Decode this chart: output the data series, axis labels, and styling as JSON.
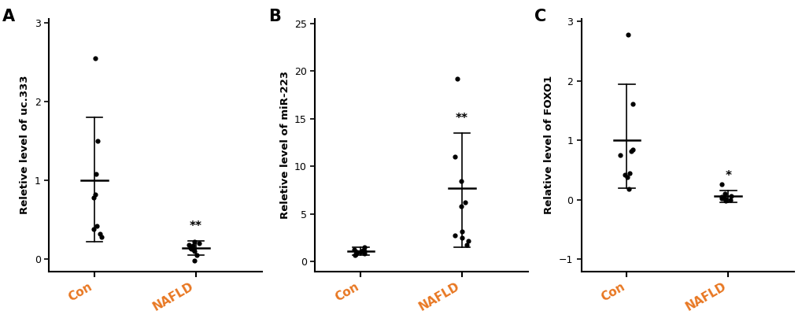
{
  "panels": [
    {
      "label": "A",
      "ylabel": "Reletive level of uc.333",
      "ylim": [
        -0.15,
        3.05
      ],
      "yticks": [
        0,
        1,
        2,
        3
      ],
      "groups": {
        "Con": {
          "points": [
            2.55,
            1.5,
            1.08,
            0.82,
            0.78,
            0.42,
            0.38,
            0.32,
            0.28
          ],
          "mean": 1.0,
          "sem_low": 0.22,
          "sem_high": 1.8
        },
        "NAFLD": {
          "points": [
            0.22,
            0.2,
            0.18,
            0.17,
            0.15,
            0.14,
            0.13,
            0.12,
            0.1,
            0.05,
            -0.02
          ],
          "mean": 0.14,
          "sem_low": 0.05,
          "sem_high": 0.23,
          "sig": "**"
        }
      }
    },
    {
      "label": "B",
      "ylabel": "Reletive level of miR-223",
      "ylim": [
        -1.0,
        25.5
      ],
      "yticks": [
        0,
        5,
        10,
        15,
        20,
        25
      ],
      "groups": {
        "Con": {
          "points": [
            1.5,
            1.3,
            1.2,
            1.1,
            1.05,
            1.0,
            0.95,
            0.9,
            0.8,
            0.7
          ],
          "mean": 1.1,
          "sem_low": 0.7,
          "sem_high": 1.5
        },
        "NAFLD": {
          "points": [
            19.2,
            11.0,
            8.5,
            6.2,
            5.8,
            3.2,
            2.8,
            2.5,
            2.2,
            1.8
          ],
          "mean": 7.7,
          "sem_low": 1.5,
          "sem_high": 13.5,
          "sig": "**"
        }
      }
    },
    {
      "label": "C",
      "ylabel": "Relative level of FOXO1",
      "ylim": [
        -1.2,
        3.05
      ],
      "yticks": [
        -1,
        0,
        1,
        2,
        3
      ],
      "groups": {
        "Con": {
          "points": [
            2.78,
            1.62,
            0.85,
            0.82,
            0.75,
            0.45,
            0.42,
            0.38,
            0.18
          ],
          "mean": 1.0,
          "sem_low": 0.2,
          "sem_high": 1.95
        },
        "NAFLD": {
          "points": [
            0.27,
            0.1,
            0.07,
            0.05,
            0.03,
            0.02,
            0.01,
            0.0,
            -0.02
          ],
          "mean": 0.06,
          "sem_low": -0.04,
          "sem_high": 0.16,
          "sig": "*"
        }
      }
    }
  ],
  "group_names": [
    "Con",
    "NAFLD"
  ],
  "dot_color": "#000000",
  "line_color": "#000000",
  "sig_color": "#000000",
  "xlabel_color": "#E87722",
  "ylabel_color": "#000000",
  "panel_label_fontsize": 15,
  "ylabel_fontsize": 9.5,
  "tick_fontsize": 9,
  "sig_fontsize": 11,
  "xlabel_fontsize": 11,
  "background_color": "#ffffff"
}
